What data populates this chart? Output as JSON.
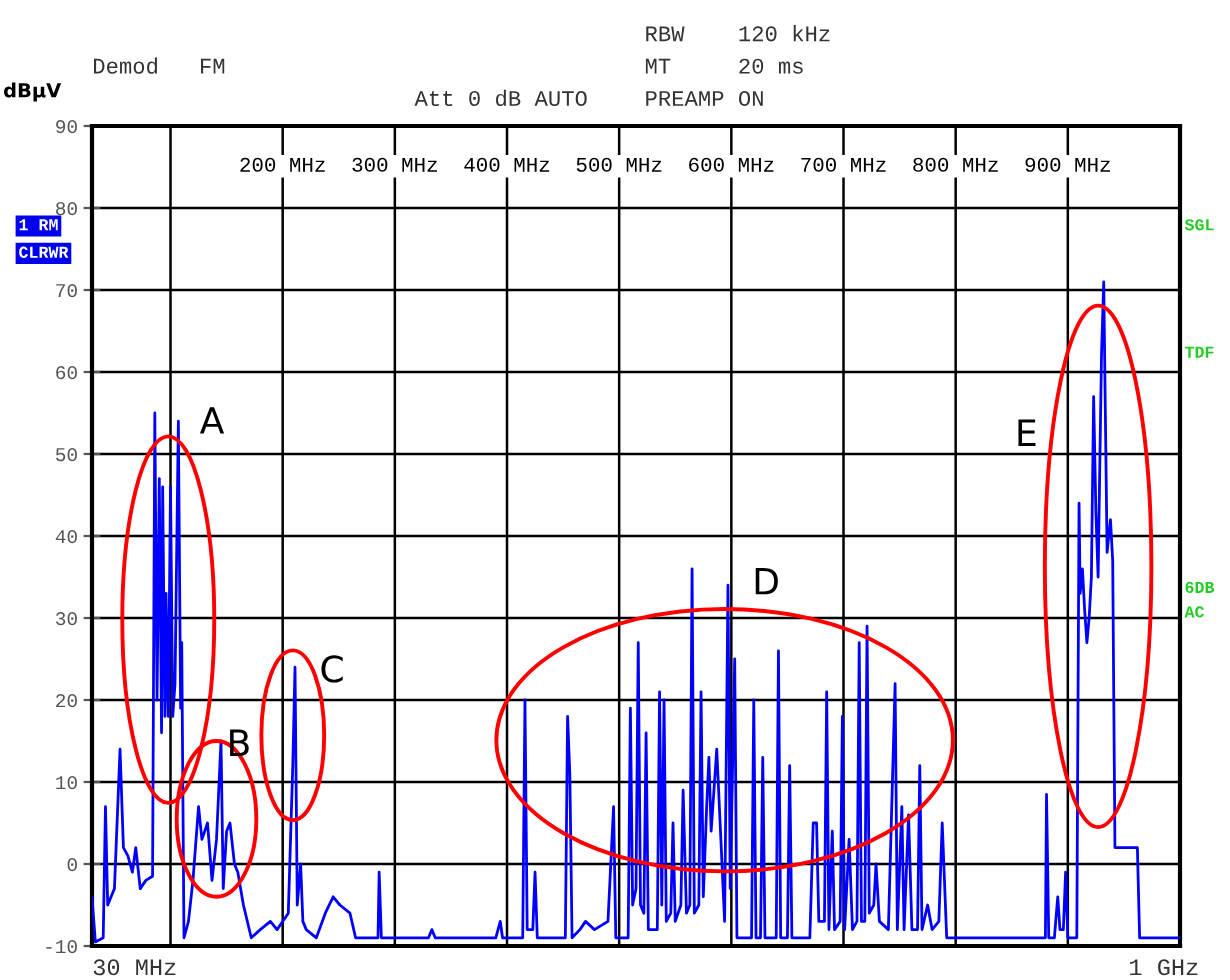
{
  "chart_data": {
    "type": "line",
    "ylabel": "dBµV",
    "x": [
      30,
      33,
      40,
      42,
      44,
      50,
      55,
      58,
      62,
      66,
      69,
      73,
      78,
      84,
      86,
      88,
      90,
      92,
      93,
      95,
      96,
      98,
      100,
      102,
      104,
      107,
      109,
      110,
      112,
      116,
      120,
      125,
      128,
      133,
      137,
      141,
      145,
      147,
      150,
      153,
      157,
      160,
      165,
      172,
      180,
      189,
      195,
      205,
      209,
      211,
      213,
      216,
      218,
      221,
      230,
      238,
      245,
      251,
      260,
      265,
      278,
      285,
      286,
      288,
      300,
      330,
      333,
      336,
      390,
      394,
      396,
      414,
      416,
      418,
      423,
      425,
      427,
      452,
      454,
      456,
      458,
      465,
      470,
      478,
      490,
      495,
      497,
      508,
      510,
      512,
      515,
      517,
      519,
      522,
      524,
      526,
      534,
      536,
      538,
      540,
      542,
      546,
      548,
      550,
      555,
      557,
      560,
      563,
      565,
      567,
      571,
      573,
      575,
      578,
      580,
      582,
      587,
      590,
      594,
      597,
      599,
      603,
      605,
      618,
      620,
      622,
      626,
      628,
      630,
      640,
      642,
      644,
      650,
      652,
      654,
      670,
      673,
      676,
      678,
      683,
      685,
      687,
      690,
      692,
      697,
      699,
      701,
      705,
      708,
      712,
      714,
      716,
      719,
      721,
      723,
      727,
      729,
      732,
      740,
      746,
      748,
      752,
      754,
      758,
      761,
      766,
      768,
      770,
      775,
      779,
      785,
      788,
      792,
      795,
      850,
      870,
      880,
      881,
      883,
      888,
      891,
      893,
      896,
      898,
      900,
      908,
      910,
      911,
      913,
      915,
      917,
      919,
      921,
      923,
      925,
      927,
      930,
      932,
      935,
      938,
      940,
      942,
      962,
      964,
      1000
    ],
    "series": [
      {
        "color": "#0000ff",
        "values": [
          -4,
          -9.5,
          -9,
          7,
          -5,
          -3,
          14,
          2,
          1,
          -1,
          2,
          -3,
          -2,
          -1.5,
          55,
          20,
          47,
          16,
          46,
          18,
          33,
          18,
          46,
          18,
          22,
          54,
          19,
          27,
          -9,
          -7,
          -2,
          7,
          3,
          5,
          -2,
          3,
          15,
          -3,
          4,
          5,
          0,
          -1,
          -5,
          -9,
          -8,
          -7,
          -8,
          -6,
          12,
          24,
          -5,
          0,
          -7,
          -8,
          -9,
          -6,
          -4,
          -5,
          -6,
          -9,
          -9,
          -9,
          -1,
          -9,
          -9,
          -9,
          -8,
          -9,
          -9,
          -7,
          -9,
          -9,
          20,
          -8,
          -8,
          -1,
          -9,
          -9,
          18,
          11,
          -9,
          -8,
          -7,
          -8,
          -7,
          7,
          -9,
          -9,
          19,
          -5,
          -3,
          27,
          -5,
          -6,
          16,
          -8,
          -8,
          21,
          -5,
          20,
          -7,
          -6,
          5,
          -7,
          -5,
          9,
          -6,
          -5,
          36,
          -6,
          -5,
          21,
          -4,
          7,
          13,
          4,
          14,
          5,
          -7,
          34,
          -3,
          25,
          -9,
          -9,
          20,
          -9,
          -9,
          13,
          -9,
          -9,
          26,
          -9,
          -9,
          12,
          -9,
          -9,
          5,
          5,
          -7,
          -7,
          21,
          -8,
          4,
          -8,
          -7,
          18,
          -8,
          3,
          -8,
          -7,
          27,
          -7,
          -7,
          29,
          -6,
          -5,
          0,
          -7,
          -8,
          22,
          -8,
          7,
          -8,
          6,
          -8,
          -8,
          12,
          -8,
          -5,
          -8,
          -7,
          5,
          -9,
          -9,
          -9,
          -9,
          -9,
          8.5,
          -9,
          -9,
          -4,
          -8,
          -8,
          -1,
          -9,
          -9,
          44,
          33,
          36,
          31,
          27,
          30,
          35,
          57,
          43,
          35,
          62,
          71,
          38,
          42,
          37,
          2,
          2,
          -9,
          -9
        ]
      }
    ],
    "xlim": [
      30,
      1000
    ],
    "xticks": [
      {
        "value": 100,
        "label": null
      },
      {
        "value": 200,
        "label": "200 MHz"
      },
      {
        "value": 300,
        "label": "300 MHz"
      },
      {
        "value": 400,
        "label": "400 MHz"
      },
      {
        "value": 500,
        "label": "500 MHz"
      },
      {
        "value": 600,
        "label": "600 MHz"
      },
      {
        "value": 700,
        "label": "700 MHz"
      },
      {
        "value": 800,
        "label": "800 MHz"
      },
      {
        "value": 900,
        "label": "900 MHz"
      }
    ],
    "ylim": [
      -10,
      90
    ],
    "yticks": [
      -10,
      0,
      10,
      20,
      30,
      40,
      50,
      60,
      70,
      80,
      90
    ],
    "grid": true,
    "annotations": [
      "A",
      "B",
      "C",
      "D",
      "E",
      "Demod   FM",
      "RBW    120 kHz",
      "MT     20 ms",
      "Att 0 dB AUTO",
      "PREAMP ON",
      "1 RM",
      "CLRWR",
      "SGL",
      "TDF",
      "6DB",
      "AC",
      "30 MHz",
      "1 GHz"
    ]
  }
}
